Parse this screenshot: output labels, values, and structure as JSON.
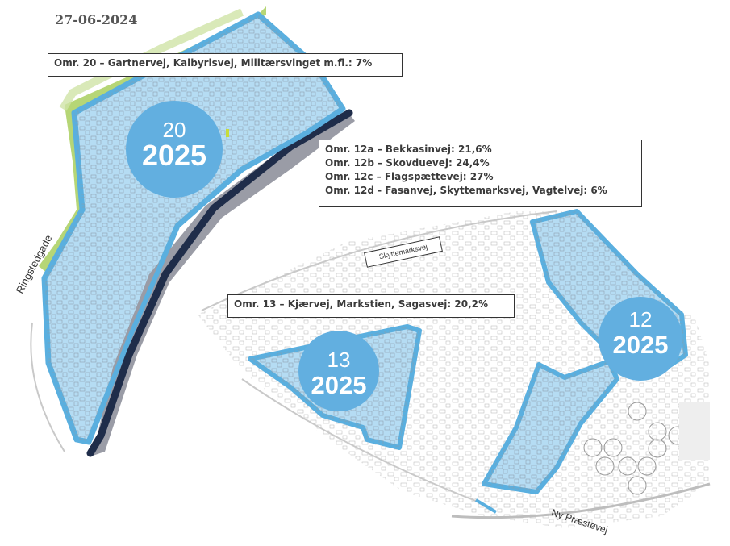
{
  "date": "27-06-2024",
  "annotations": {
    "omr20": "Omr. 20 – Gartnervej, Kalbyrisvej, Militærsvinget m.fl.: 7%",
    "omr12": [
      "Omr. 12a – Bekkasinvej: 21,6%",
      "Omr. 12b – Skovduevej: 24,4%",
      "Omr. 12c – Flagspættevej: 27%",
      "Omr. 12d - Fasanvej, Skyttemarksvej, Vagtelvej: 6%"
    ],
    "omr13": "Omr. 13 – Kjærvej, Markstien, Sagasvej: 20,2%"
  },
  "areas": [
    {
      "id": "20",
      "number": "20",
      "year": "2025"
    },
    {
      "id": "13",
      "number": "13",
      "year": "2025"
    },
    {
      "id": "12",
      "number": "12",
      "year": "2025"
    }
  ],
  "streets": {
    "skyttemarksvej": "Skyttemarksvej",
    "ringstedgade": "Ringstedgade",
    "ny_praestoevej": "Ny Præstøvej"
  },
  "colors": {
    "area_fill": "#b5dcf3",
    "area_border": "#5aafdf",
    "badge": "#62afe0",
    "rail": "#1f2d4a",
    "green": "#a9cf5e"
  }
}
